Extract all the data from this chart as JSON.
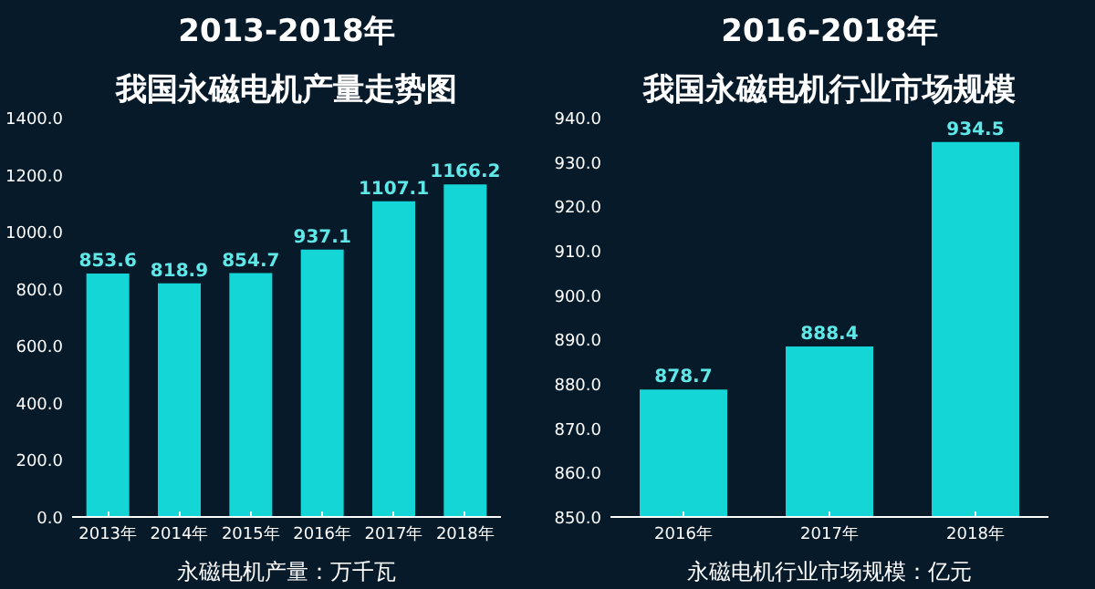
{
  "chart_data": [
    {
      "type": "bar",
      "title": "2013-2018年",
      "subtitle": "我国永磁电机产量走势图",
      "xlabel": "永磁电机产量：万千瓦",
      "categories": [
        "2013年",
        "2014年",
        "2015年",
        "2016年",
        "2017年",
        "2018年"
      ],
      "values": [
        853.6,
        818.9,
        854.7,
        937.1,
        1107.1,
        1166.2
      ],
      "color": "#14d6d6",
      "ylim": [
        0,
        1400
      ],
      "yticks": [
        {
          "value": 0,
          "label": "0.0"
        },
        {
          "value": 200,
          "label": "200.0"
        },
        {
          "value": 400,
          "label": "400.0"
        },
        {
          "value": 600,
          "label": "600.0"
        },
        {
          "value": 800,
          "label": "800.0"
        },
        {
          "value": 1000,
          "label": "1000.0"
        },
        {
          "value": 1200,
          "label": "1200.0"
        },
        {
          "value": 1400,
          "label": "1400.0"
        }
      ],
      "data_labels": true,
      "grid": false
    },
    {
      "type": "bar",
      "title": "2016-2018年",
      "subtitle": "我国永磁电机行业市场规模",
      "xlabel": "永磁电机行业市场规模：亿元",
      "categories": [
        "2016年",
        "2017年",
        "2018年"
      ],
      "values": [
        878.7,
        888.4,
        934.5
      ],
      "color": "#14d6d6",
      "ylim": [
        850,
        940
      ],
      "yticks": [
        {
          "value": 850,
          "label": "850.0"
        },
        {
          "value": 860,
          "label": "860.0"
        },
        {
          "value": 870,
          "label": "870.0"
        },
        {
          "value": 880,
          "label": "880.0"
        },
        {
          "value": 890,
          "label": "890.0"
        },
        {
          "value": 900,
          "label": "900.0"
        },
        {
          "value": 910,
          "label": "910.0"
        },
        {
          "value": 920,
          "label": "920.0"
        },
        {
          "value": 930,
          "label": "930.0"
        },
        {
          "value": 940,
          "label": "940.0"
        }
      ],
      "data_labels": true,
      "grid": false
    }
  ]
}
